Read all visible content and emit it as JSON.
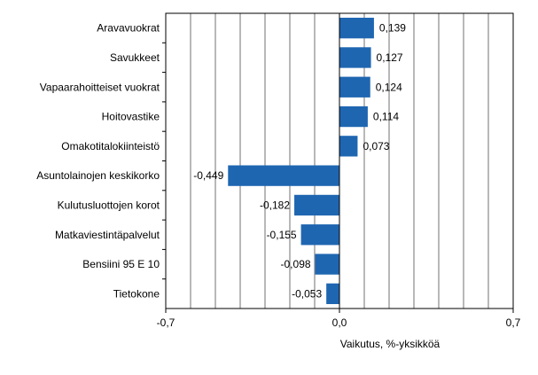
{
  "chart_data": {
    "type": "bar",
    "orientation": "horizontal",
    "categories": [
      "Aravavuokrat",
      "Savukkeet",
      "Vapaarahoitteiset vuokrat",
      "Hoitovastike",
      "Omakotitalokiinteistö",
      "Asuntolainojen keskikorko",
      "Kulutusluottojen korot",
      "Matkaviestintäpalvelut",
      "Bensiini 95 E 10",
      "Tietokone"
    ],
    "values": [
      0.139,
      0.127,
      0.124,
      0.114,
      0.073,
      -0.449,
      -0.182,
      -0.155,
      -0.098,
      -0.053
    ],
    "value_labels": [
      "0,139",
      "0,127",
      "0,124",
      "0,114",
      "0,073",
      "-0,449",
      "-0,182",
      "-0,155",
      "-0,098",
      "-0,053"
    ],
    "xlim": [
      -0.7,
      0.7
    ],
    "grid_step": 0.1,
    "x_ticks": [
      {
        "value": -0.7,
        "label": "-0,7"
      },
      {
        "value": 0.0,
        "label": "0,0"
      },
      {
        "value": 0.7,
        "label": "0,7"
      }
    ],
    "xlabel": "Vaikutus, %-yksikköä",
    "ylabel": "",
    "title": "",
    "grid": true,
    "bar_color": "#1f66b1",
    "grid_color": "#000000"
  }
}
